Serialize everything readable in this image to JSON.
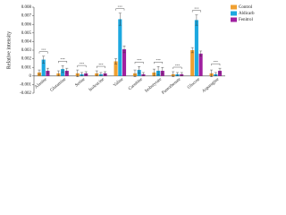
{
  "chart_data": {
    "type": "bar",
    "y_label": "Relative intensity",
    "categories": [
      "Alanine",
      "Glutamine",
      "Serine",
      "Isoleucine",
      "Valine",
      "Carnitine",
      "Isobutyrate",
      "Pantothenate",
      "Glucose",
      "Asparagine"
    ],
    "series": [
      {
        "name": "Control",
        "color": "#f0a030",
        "values": [
          0.0004,
          0.0003,
          0.0003,
          0.0003,
          0.0017,
          0.0003,
          0.0004,
          0.0002,
          0.003,
          0.0003
        ],
        "errors": [
          0.0003,
          0.0003,
          0.0004,
          0.0003,
          0.0003,
          0.0004,
          0.0004,
          0.0003,
          0.0003,
          0.0004
        ]
      },
      {
        "name": "Aldicarb",
        "color": "#1ca8e0",
        "values": [
          0.0019,
          0.0008,
          0.0002,
          0.0002,
          0.0066,
          0.0007,
          0.0006,
          0.0002,
          0.0065,
          0.0002
        ],
        "errors": [
          0.0004,
          0.0004,
          0.0002,
          0.0002,
          0.0007,
          0.0004,
          0.0005,
          0.0002,
          0.0006,
          0.0002
        ]
      },
      {
        "name": "Fenitrol",
        "color": "#a020a0",
        "values": [
          0.0006,
          0.0006,
          0.0003,
          0.0003,
          0.0031,
          0.0002,
          0.0006,
          0.0002,
          0.0026,
          0.0006
        ],
        "errors": [
          0.0003,
          0.0003,
          0.0002,
          0.0002,
          0.0004,
          0.0002,
          0.0004,
          0.0002,
          0.0003,
          0.0003
        ]
      }
    ],
    "brackets": [
      "***",
      "***",
      "***",
      "***",
      "***",
      "***",
      "***",
      "***",
      "***",
      "***"
    ],
    "ylim": [
      -0.002,
      0.008
    ],
    "yticks": [
      -0.002,
      -0.001,
      0,
      0.001,
      0.002,
      0.003,
      0.004,
      0.005,
      0.006,
      0.007,
      0.008
    ],
    "legend": "top-right"
  }
}
